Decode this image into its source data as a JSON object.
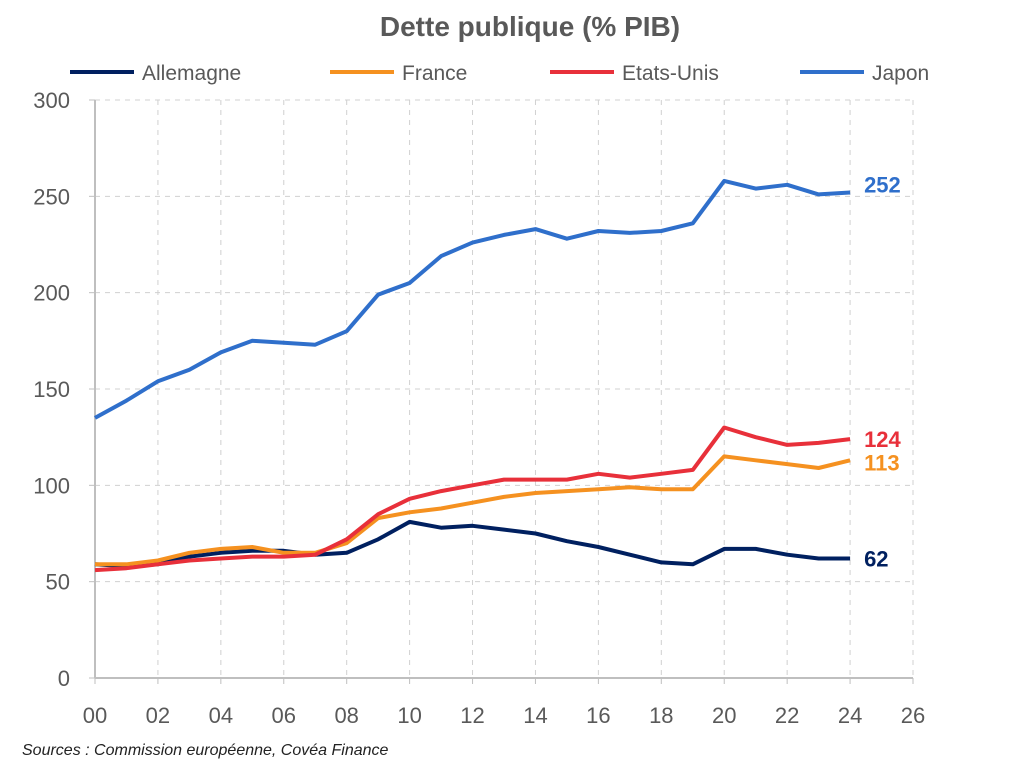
{
  "chart_data": {
    "type": "line",
    "title": "Dette publique (% PIB)",
    "xlabel": "",
    "ylabel": "",
    "x": [
      0,
      1,
      2,
      3,
      4,
      5,
      6,
      7,
      8,
      9,
      10,
      11,
      12,
      13,
      14,
      15,
      16,
      17,
      18,
      19,
      20,
      21,
      22,
      23,
      24
    ],
    "xlim": [
      0,
      26
    ],
    "ylim": [
      0,
      300
    ],
    "xticks": [
      "00",
      "02",
      "04",
      "06",
      "08",
      "10",
      "12",
      "14",
      "16",
      "18",
      "20",
      "22",
      "24",
      "26"
    ],
    "yticks": [
      0,
      50,
      100,
      150,
      200,
      250,
      300
    ],
    "grid": true,
    "legend_position": "top",
    "series": [
      {
        "name": "Allemagne",
        "color": "#002060",
        "end_label": "62",
        "values": [
          59,
          58,
          59,
          63,
          65,
          66,
          66,
          64,
          65,
          72,
          81,
          78,
          79,
          77,
          75,
          71,
          68,
          64,
          60,
          59,
          67,
          67,
          64,
          62,
          62
        ]
      },
      {
        "name": "France",
        "color": "#F59120",
        "end_label": "113",
        "values": [
          59,
          59,
          61,
          65,
          67,
          68,
          65,
          65,
          70,
          83,
          86,
          88,
          91,
          94,
          96,
          97,
          98,
          99,
          98,
          98,
          115,
          113,
          111,
          109,
          113
        ]
      },
      {
        "name": "Etats-Unis",
        "color": "#E8303A",
        "end_label": "124",
        "values": [
          56,
          57,
          59,
          61,
          62,
          63,
          63,
          64,
          72,
          85,
          93,
          97,
          100,
          103,
          103,
          103,
          106,
          104,
          106,
          108,
          130,
          125,
          121,
          122,
          124
        ]
      },
      {
        "name": "Japon",
        "color": "#2F6FCB",
        "end_label": "252",
        "values": [
          135,
          144,
          154,
          160,
          169,
          175,
          174,
          173,
          180,
          199,
          205,
          219,
          226,
          230,
          233,
          228,
          232,
          231,
          232,
          236,
          258,
          254,
          256,
          251,
          252
        ]
      }
    ]
  },
  "source": "Sources : Commission européenne, Covéa Finance"
}
